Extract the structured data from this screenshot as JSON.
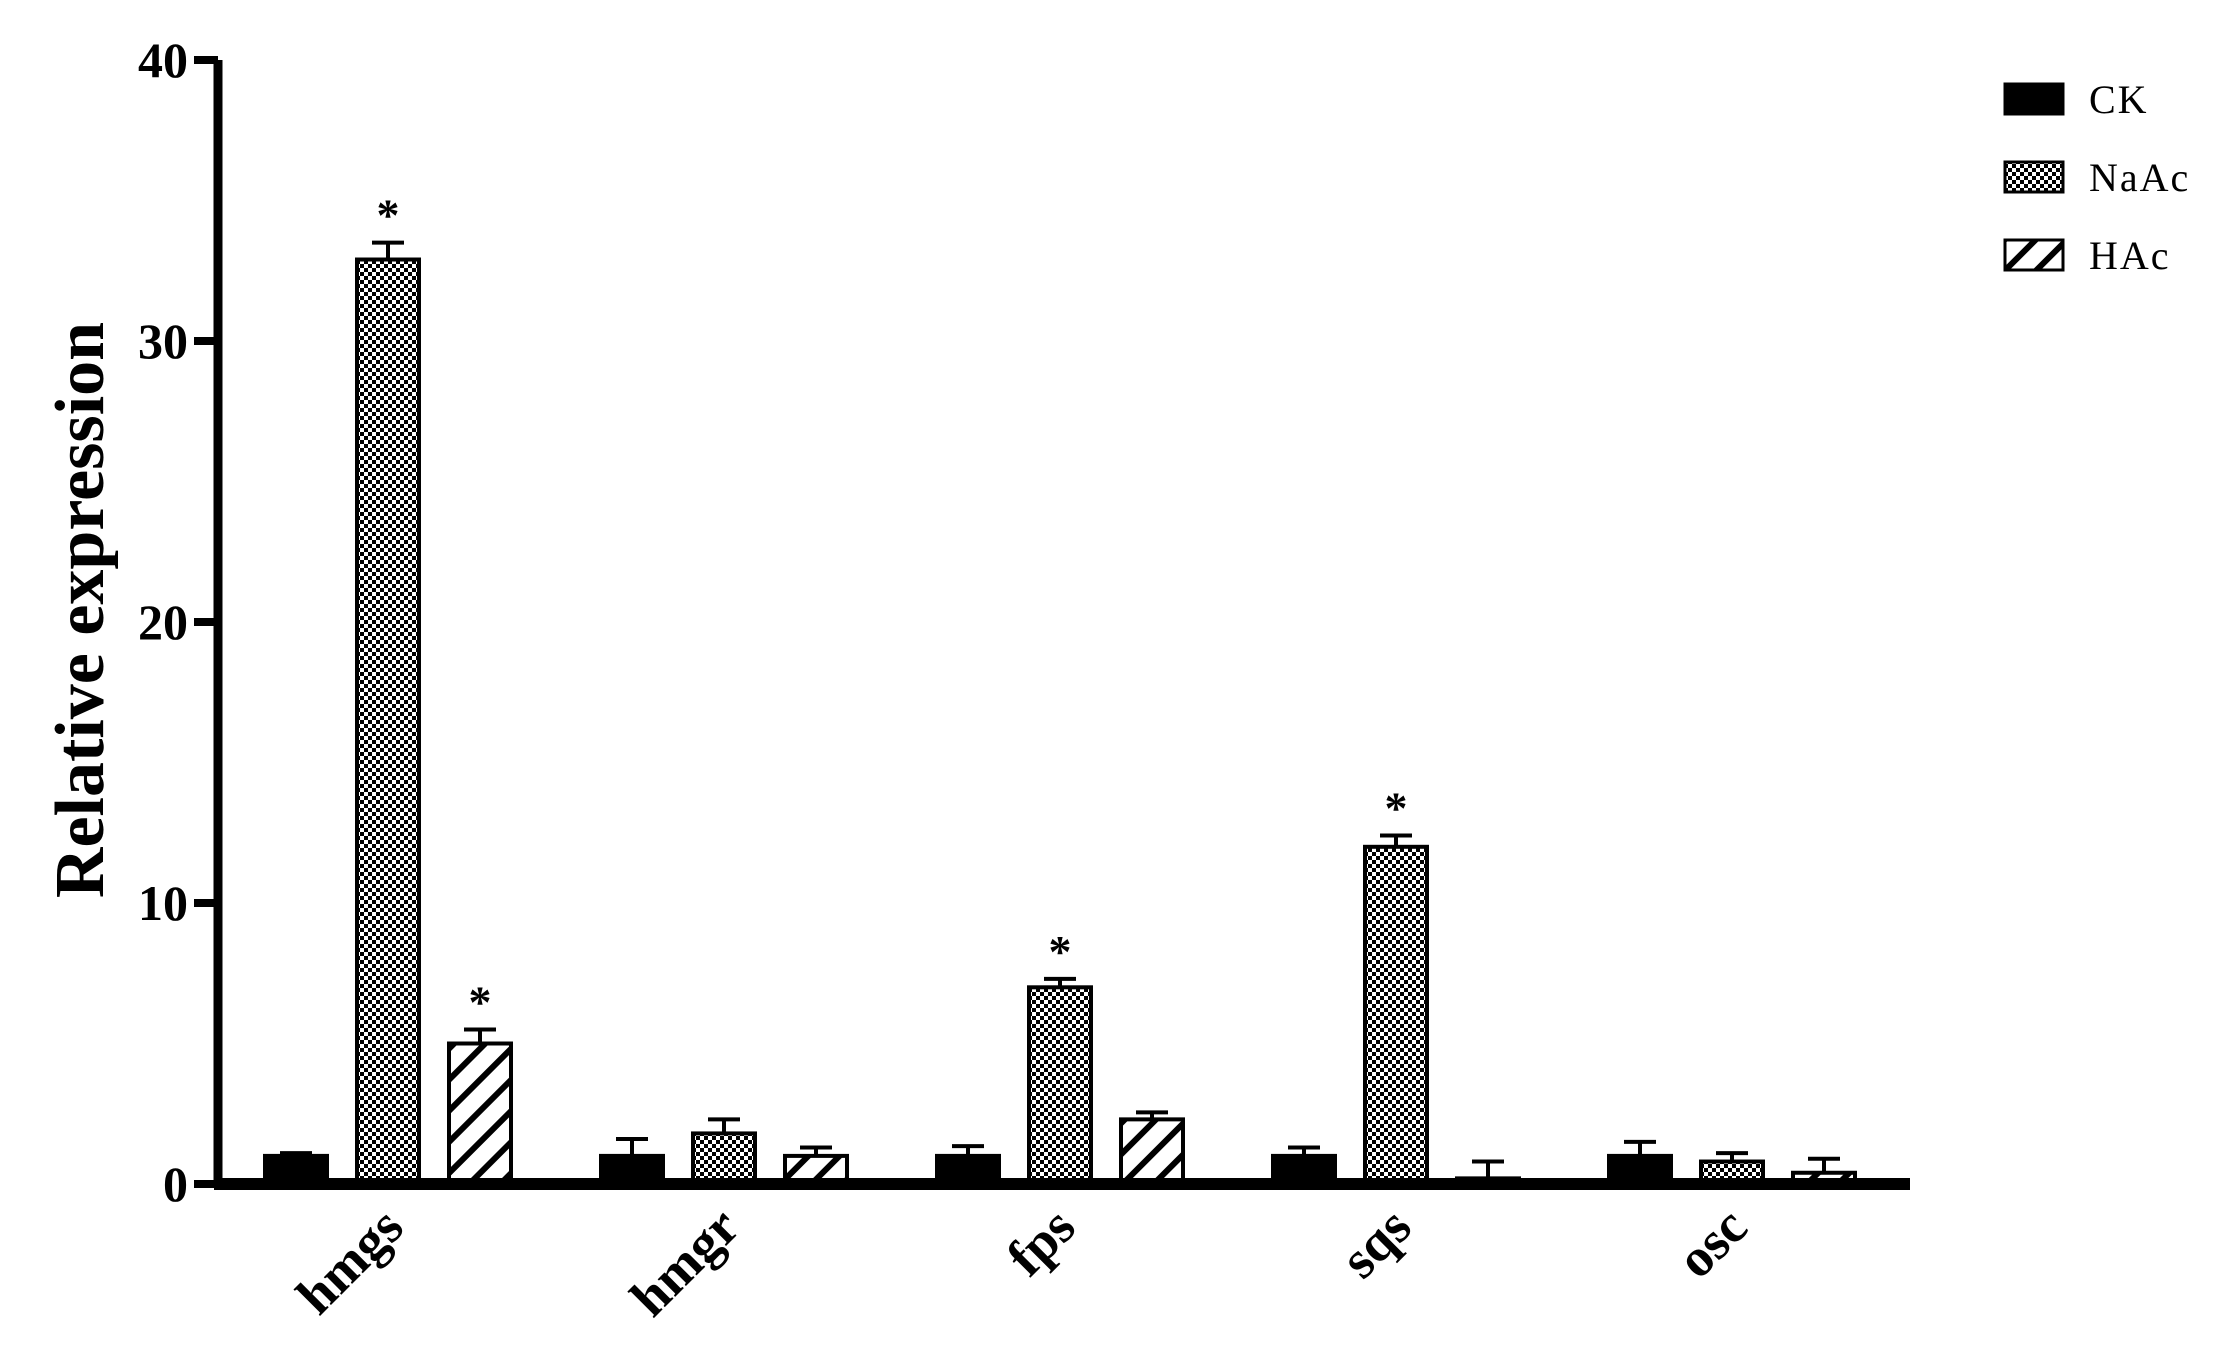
{
  "chart_data": {
    "type": "bar",
    "title": "",
    "xlabel": "",
    "ylabel": "Relative expression",
    "ylim": [
      0,
      40
    ],
    "yticks": [
      0,
      10,
      20,
      30,
      40
    ],
    "grid": false,
    "legend_position": "top-right",
    "categories": [
      "hmgs",
      "hmgr",
      "fps",
      "sqs",
      "osc"
    ],
    "series": [
      {
        "name": "CK",
        "pattern": "solid",
        "values": [
          1.0,
          1.0,
          1.0,
          1.0,
          1.0
        ],
        "errors": [
          0.1,
          0.6,
          0.35,
          0.3,
          0.5
        ],
        "significant": [
          false,
          false,
          false,
          false,
          false
        ]
      },
      {
        "name": "NaAc",
        "pattern": "checkered",
        "values": [
          32.9,
          1.8,
          7.0,
          12.0,
          0.8
        ],
        "errors": [
          0.6,
          0.5,
          0.3,
          0.4,
          0.3
        ],
        "significant": [
          true,
          false,
          true,
          true,
          false
        ]
      },
      {
        "name": "HAc",
        "pattern": "diagonal-hatch",
        "values": [
          5.0,
          1.0,
          2.3,
          0.2,
          0.4
        ],
        "errors": [
          0.5,
          0.3,
          0.25,
          0.6,
          0.5
        ],
        "significant": [
          true,
          false,
          false,
          false,
          false
        ]
      }
    ],
    "significance_marker": "*",
    "colors": {
      "bar_fill": "#000000",
      "background": "#ffffff",
      "axis": "#000000"
    }
  }
}
